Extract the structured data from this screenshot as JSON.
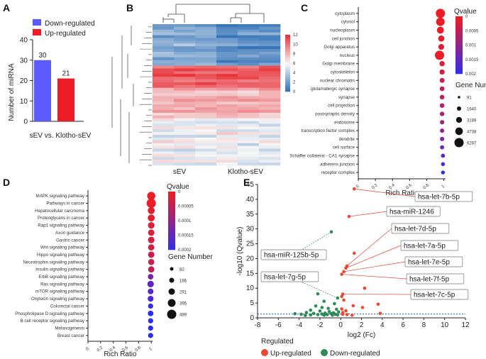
{
  "colors": {
    "down": "#5b5bff",
    "up": "#ee1c25",
    "volcano_up": "#ea4a34",
    "volcano_down": "#2e8b57"
  },
  "chart_data": [
    {
      "panel": "A",
      "type": "bar",
      "categories": [
        "Down-regulated",
        "Up-regulated"
      ],
      "values": [
        30,
        21
      ],
      "legend": [
        "Down-regulated",
        "Up-regulated"
      ],
      "ylabel": "Number of miRNA",
      "xlabel": "sEV vs. Klotho-sEV",
      "ylim": [
        0,
        40
      ],
      "yticks": [
        "0",
        "10",
        "20",
        "30",
        "40"
      ]
    },
    {
      "panel": "B",
      "type": "heatmap",
      "columns": [
        "sEV",
        "Klotho-sEV"
      ],
      "colorbar_ticks": [
        "0",
        "2",
        "4",
        "6",
        "8",
        "10",
        "12"
      ],
      "vmin": 0,
      "vmax": 12
    },
    {
      "panel": "C",
      "type": "scatter",
      "title": "",
      "xlabel": "Rich Ratio",
      "xticks": [
        "0",
        "0.2",
        "0.4",
        "0.6",
        "0.8",
        "1"
      ],
      "terms": [
        "cytoplasm",
        "cytosol",
        "nucleoplasm",
        "cell junction",
        "Golgi apparatus",
        "nucleus",
        "Golgi membrane",
        "cytoskeleton",
        "nuclear chromatin",
        "glutamatergic synapse",
        "synapse",
        "cell projection",
        "postsynaptic density",
        "endosome",
        "transcription factor complex",
        "dendrite",
        "cell surface",
        "Schaffer collateral - CA1 synapse",
        "adherens junction",
        "receptor complex"
      ],
      "rich_ratio": [
        0.96,
        0.96,
        0.96,
        0.97,
        0.97,
        0.95,
        0.98,
        0.98,
        0.98,
        0.98,
        0.98,
        0.98,
        0.98,
        0.98,
        0.98,
        0.98,
        0.98,
        0.99,
        0.99,
        0.99
      ],
      "qvalue": [
        1e-05,
        2e-05,
        4e-05,
        0.0001,
        0.00015,
        1e-05,
        0.0002,
        0.0003,
        0.0004,
        0.0005,
        0.0006,
        0.0007,
        0.0008,
        0.0009,
        0.001,
        0.0012,
        0.0014,
        0.0016,
        0.0018,
        0.0021
      ],
      "gene_number": [
        6287,
        5600,
        4200,
        3500,
        3100,
        6287,
        2600,
        2500,
        2300,
        2100,
        2000,
        2000,
        1900,
        1800,
        1700,
        1700,
        1600,
        1500,
        1400,
        1300
      ],
      "color_title": "Qvalue",
      "color_ticks": [
        "0",
        "0.0005",
        "0.001",
        "0.0015",
        "0.002"
      ],
      "size_title": "Gene Number",
      "size_ticks": [
        "91",
        "1640",
        "3189",
        "4738",
        "6287"
      ]
    },
    {
      "panel": "D",
      "type": "scatter",
      "xlabel": "Rich Ratio",
      "xticks": [
        "0",
        "0.2",
        "0.4",
        "0.6",
        "0.8",
        "1"
      ],
      "terms": [
        "MAPK signaling pathway",
        "Pathways in cancer",
        "Hepatocellular carcinoma",
        "Proteoglycans in cancer",
        "Rap1 signaling pathway",
        "Axon guidance",
        "Gastric cancer",
        "Wnt signaling pathway",
        "Hippo signaling pathway",
        "Neurotrophin signaling pathway",
        "Insulin signaling pathway",
        "ErbB signaling pathway",
        "Ras signaling pathway",
        "mTOR signaling pathway",
        "Oxytocin signaling pathway",
        "Colorectal cancer",
        "Phospholipase D signaling pathway",
        "B cell receptor signaling pathway",
        "Melanogenesis",
        "Breast cancer"
      ],
      "rich_ratio": [
        1,
        1,
        1,
        1,
        1,
        1,
        1,
        1,
        1,
        1,
        1,
        0.99,
        0.99,
        0.99,
        0.99,
        0.99,
        0.99,
        0.99,
        0.99,
        0.99
      ],
      "qvalue": [
        0,
        0,
        1e-05,
        1e-05,
        2e-05,
        2e-05,
        3e-05,
        3e-05,
        4e-05,
        4e-05,
        5e-05,
        0.00012,
        0.00015,
        0.00016,
        0.00017,
        0.00019,
        0.0002,
        0.0002,
        0.0002,
        0.0002
      ],
      "gene_number": [
        420,
        499,
        330,
        330,
        300,
        290,
        300,
        280,
        290,
        270,
        280,
        230,
        300,
        240,
        250,
        200,
        230,
        200,
        200,
        200
      ],
      "color_title": "Qvalue",
      "color_ticks": [
        "0",
        "0.00005",
        "0.0001",
        "0.00015",
        "0.0002"
      ],
      "size_title": "Gene Number",
      "size_ticks": [
        "82",
        "186",
        "291",
        "395",
        "499"
      ]
    },
    {
      "panel": "E",
      "type": "scatter",
      "xlabel": "log2 (Fc)",
      "ylabel": "-log10 (Qvalue)",
      "xlim": [
        -8,
        12
      ],
      "ylim": [
        0,
        45
      ],
      "xticks": [
        "-8",
        "-6",
        "-4",
        "-2",
        "0",
        "2",
        "4",
        "6",
        "8",
        "10",
        "12"
      ],
      "yticks": [
        "0",
        "5",
        "10",
        "15",
        "20",
        "25",
        "30",
        "35",
        "40",
        "45"
      ],
      "threshold": 1.3,
      "legend_title": "Regulated",
      "legend": [
        "Up-regulated",
        "Down-regulated"
      ],
      "up_points": [
        [
          1.3,
          43.5
        ],
        [
          0.8,
          34.2
        ],
        [
          0.6,
          17.5
        ],
        [
          0.5,
          16.8
        ],
        [
          0.3,
          15.6
        ],
        [
          0.1,
          14.7
        ],
        [
          1.3,
          21.8
        ],
        [
          2.3,
          10
        ],
        [
          0.2,
          8
        ],
        [
          0.1,
          7.2
        ],
        [
          0.3,
          6
        ],
        [
          3.6,
          4.6
        ],
        [
          1.2,
          4.1
        ],
        [
          2.1,
          3.5
        ],
        [
          0.1,
          3
        ],
        [
          0.5,
          2.4
        ],
        [
          0.2,
          1.8
        ],
        [
          3.8,
          1.5
        ],
        [
          0.2,
          1.2
        ],
        [
          0.6,
          1.1
        ],
        [
          1.1,
          0.9
        ]
      ],
      "down_points": [
        [
          -0.9,
          29
        ],
        [
          -3.6,
          12.9
        ],
        [
          -2.2,
          8.1
        ],
        [
          -0.3,
          6.7
        ],
        [
          -1.6,
          5.6
        ],
        [
          -0.6,
          4.8
        ],
        [
          -2.4,
          4
        ],
        [
          -1.8,
          3.5
        ],
        [
          -1.2,
          3.2
        ],
        [
          -0.4,
          2.9
        ],
        [
          -2.9,
          2.6
        ],
        [
          -2,
          2.3
        ],
        [
          -1.1,
          2.1
        ],
        [
          -0.2,
          2
        ],
        [
          -3.3,
          1.8
        ],
        [
          -0.7,
          1.7
        ],
        [
          -1.5,
          1.6
        ],
        [
          -2.6,
          1.5
        ],
        [
          -4.4,
          1.4
        ],
        [
          -0.9,
          1.4
        ],
        [
          -1.8,
          1.3
        ],
        [
          -0.5,
          1.2
        ],
        [
          -3.8,
          1.2
        ],
        [
          -2.2,
          1.1
        ],
        [
          -1.3,
          1.1
        ],
        [
          -0.3,
          1.0
        ],
        [
          -2.9,
          1.0
        ],
        [
          -1.6,
          0.9
        ],
        [
          -0.8,
          0.9
        ],
        [
          -3.4,
          0.8
        ]
      ],
      "annotations": [
        {
          "label": "hsa-let-7b-5p",
          "type": "up",
          "point": [
            1.3,
            43.5
          ]
        },
        {
          "label": "hsa-miR-1246",
          "type": "up",
          "point": [
            0.8,
            34.2
          ]
        },
        {
          "label": "hsa-let-7d-5p",
          "type": "up",
          "point": [
            0.6,
            17.5
          ]
        },
        {
          "label": "hsa-let-7a-5p",
          "type": "up",
          "point": [
            0.5,
            16.8
          ]
        },
        {
          "label": "hsa-let-7e-5p",
          "type": "up",
          "point": [
            0.3,
            15.6
          ]
        },
        {
          "label": "hsa-let-7f-5p",
          "type": "up",
          "point": [
            0.1,
            14.7
          ]
        },
        {
          "label": "hsa-let-7c-5p",
          "type": "up",
          "point": [
            0.2,
            8
          ]
        },
        {
          "label": "hsa-miR-125b-5p",
          "type": "down",
          "point": [
            -0.9,
            29
          ]
        },
        {
          "label": "hsa-let-7g-5p",
          "type": "down",
          "point": [
            -0.3,
            6.7
          ]
        }
      ]
    }
  ],
  "panel_labels": [
    "A",
    "B",
    "C",
    "D",
    "E"
  ],
  "heatmap_xlabels": [
    "sEV",
    "Klotho-sEV"
  ]
}
